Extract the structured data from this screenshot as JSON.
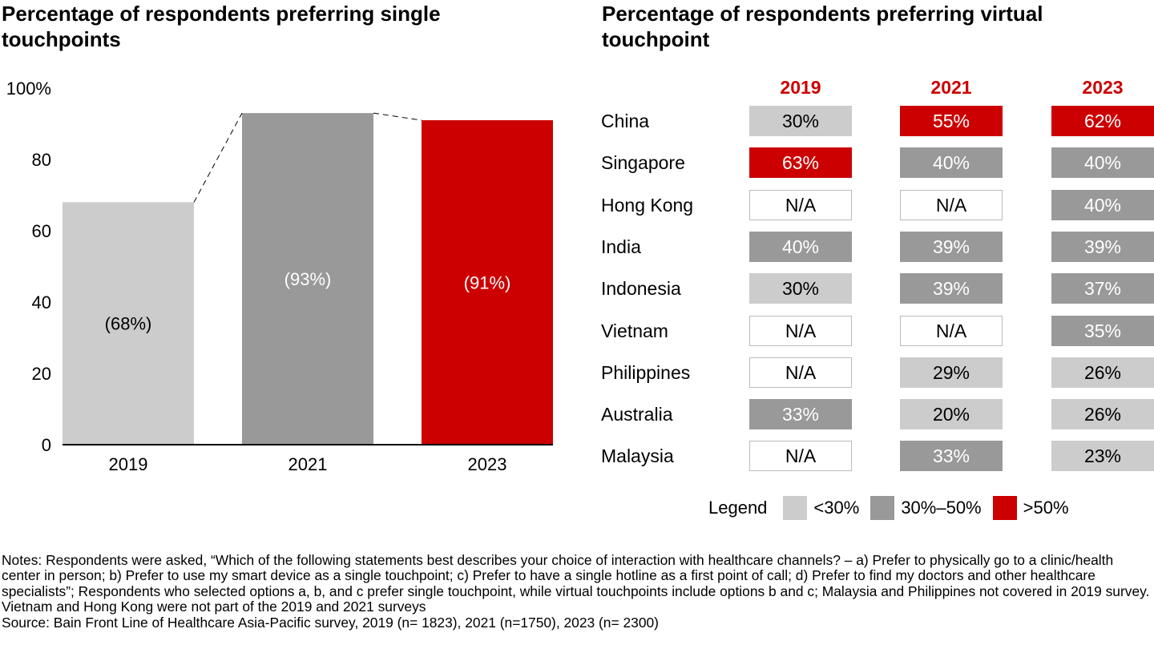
{
  "left_title": "Percentage of respondents preferring single touchpoints",
  "right_title": "Percentage of respondents preferring virtual touchpoint",
  "colors": {
    "light_gray": "#cccccc",
    "mid_gray": "#999999",
    "red": "#cc0000",
    "white": "#ffffff",
    "cell_border": "#bbbbbb"
  },
  "chart_data": [
    {
      "type": "bar",
      "title": "Percentage of respondents preferring single touchpoints",
      "categories": [
        "2019",
        "2021",
        "2023"
      ],
      "values": [
        68,
        93,
        91
      ],
      "data_labels": [
        "(68%)",
        "(93%)",
        "(91%)"
      ],
      "bar_colors": [
        "#cccccc",
        "#999999",
        "#cc0000"
      ],
      "label_colors": [
        "#000000",
        "#ffffff",
        "#ffffff"
      ],
      "ylim": [
        0,
        100
      ],
      "yticks": [
        {
          "value": 0,
          "label": "0"
        },
        {
          "value": 20,
          "label": "20"
        },
        {
          "value": 40,
          "label": "40"
        },
        {
          "value": 60,
          "label": "60"
        },
        {
          "value": 80,
          "label": "80"
        },
        {
          "value": 100,
          "label": "100%"
        }
      ],
      "connectors": "dashed",
      "grid": false
    },
    {
      "type": "table",
      "title": "Percentage of respondents preferring virtual touchpoint",
      "columns": [
        "2019",
        "2021",
        "2023"
      ],
      "rows": [
        {
          "country": "China",
          "cells": [
            {
              "label": "30%",
              "level": "low"
            },
            {
              "label": "55%",
              "level": "high"
            },
            {
              "label": "62%",
              "level": "high"
            }
          ]
        },
        {
          "country": "Singapore",
          "cells": [
            {
              "label": "63%",
              "level": "high"
            },
            {
              "label": "40%",
              "level": "mid"
            },
            {
              "label": "40%",
              "level": "mid"
            }
          ]
        },
        {
          "country": "Hong Kong",
          "cells": [
            {
              "label": "N/A",
              "level": "na"
            },
            {
              "label": "N/A",
              "level": "na"
            },
            {
              "label": "40%",
              "level": "mid"
            }
          ]
        },
        {
          "country": "India",
          "cells": [
            {
              "label": "40%",
              "level": "mid"
            },
            {
              "label": "39%",
              "level": "mid"
            },
            {
              "label": "39%",
              "level": "mid"
            }
          ]
        },
        {
          "country": "Indonesia",
          "cells": [
            {
              "label": "30%",
              "level": "low"
            },
            {
              "label": "39%",
              "level": "mid"
            },
            {
              "label": "37%",
              "level": "mid"
            }
          ]
        },
        {
          "country": "Vietnam",
          "cells": [
            {
              "label": "N/A",
              "level": "na"
            },
            {
              "label": "N/A",
              "level": "na"
            },
            {
              "label": "35%",
              "level": "mid"
            }
          ]
        },
        {
          "country": "Philippines",
          "cells": [
            {
              "label": "N/A",
              "level": "na"
            },
            {
              "label": "29%",
              "level": "low"
            },
            {
              "label": "26%",
              "level": "low"
            }
          ]
        },
        {
          "country": "Australia",
          "cells": [
            {
              "label": "33%",
              "level": "mid"
            },
            {
              "label": "20%",
              "level": "low"
            },
            {
              "label": "26%",
              "level": "low"
            }
          ]
        },
        {
          "country": "Malaysia",
          "cells": [
            {
              "label": "N/A",
              "level": "na"
            },
            {
              "label": "33%",
              "level": "mid"
            },
            {
              "label": "23%",
              "level": "low"
            }
          ]
        }
      ],
      "legend": {
        "title": "Legend",
        "items": [
          {
            "label": "<30%",
            "color": "#cccccc"
          },
          {
            "label": "30%–50%",
            "color": "#999999"
          },
          {
            "label": ">50%",
            "color": "#cc0000"
          }
        ]
      }
    }
  ],
  "notes": {
    "notes_text": "Notes: Respondents were asked, “Which of the following statements best describes your choice of interaction with healthcare channels? – a) Prefer to physically go to a clinic/health center in person; b) Prefer to use my smart device as a single touchpoint; c) Prefer to have a single hotline as a first point of call; d) Prefer to find my doctors and other healthcare specialists”; Respondents who selected options a, b, and c prefer single touchpoint, while virtual touchpoints include options b and c; Malaysia and Philippines not covered in 2019 survey. Vietnam and Hong Kong were not part of the 2019 and 2021 surveys",
    "source_text": "Source: Bain Front Line of Healthcare Asia-Pacific survey, 2019 (n= 1823), 2021 (n=1750), 2023 (n= 2300)"
  }
}
